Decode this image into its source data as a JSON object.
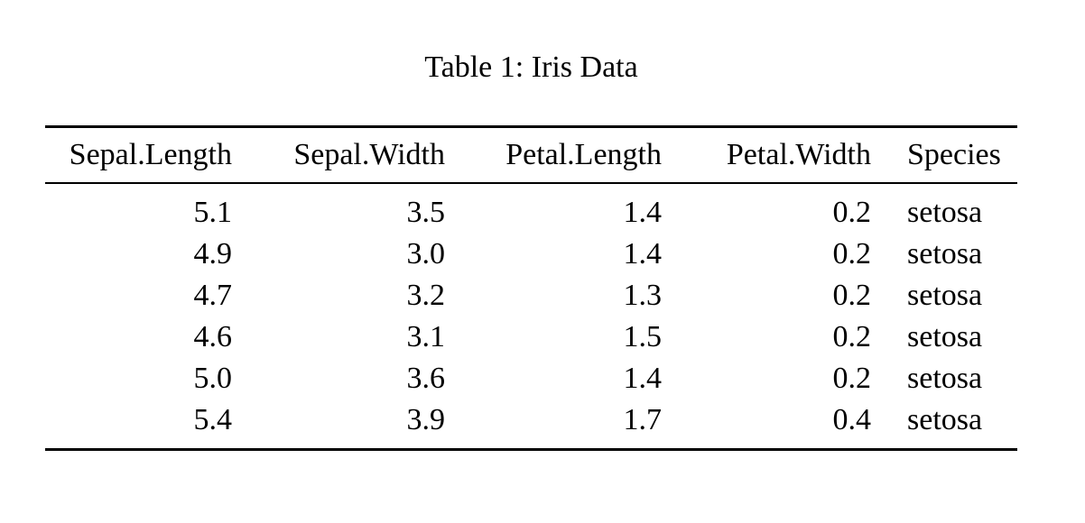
{
  "document": {
    "caption": "Table 1: Iris Data",
    "text_color": "#000000",
    "background_color": "#ffffff"
  },
  "table": {
    "columns": [
      {
        "label": "Sepal.Length",
        "align": "right"
      },
      {
        "label": "Sepal.Width",
        "align": "right"
      },
      {
        "label": "Petal.Length",
        "align": "right"
      },
      {
        "label": "Petal.Width",
        "align": "right"
      },
      {
        "label": "Species",
        "align": "left"
      }
    ],
    "rows": [
      [
        "5.1",
        "3.5",
        "1.4",
        "0.2",
        "setosa"
      ],
      [
        "4.9",
        "3.0",
        "1.4",
        "0.2",
        "setosa"
      ],
      [
        "4.7",
        "3.2",
        "1.3",
        "0.2",
        "setosa"
      ],
      [
        "4.6",
        "3.1",
        "1.5",
        "0.2",
        "setosa"
      ],
      [
        "5.0",
        "3.6",
        "1.4",
        "0.2",
        "setosa"
      ],
      [
        "5.4",
        "3.9",
        "1.7",
        "0.4",
        "setosa"
      ]
    ]
  },
  "chart_data": {
    "type": "table",
    "title": "Table 1: Iris Data",
    "categories": [
      "Sepal.Length",
      "Sepal.Width",
      "Petal.Length",
      "Petal.Width",
      "Species"
    ],
    "series": [
      {
        "name": "Sepal.Length",
        "values": [
          5.1,
          4.9,
          4.7,
          4.6,
          5.0,
          5.4
        ]
      },
      {
        "name": "Sepal.Width",
        "values": [
          3.5,
          3.0,
          3.2,
          3.1,
          3.6,
          3.9
        ]
      },
      {
        "name": "Petal.Length",
        "values": [
          1.4,
          1.4,
          1.3,
          1.5,
          1.4,
          1.7
        ]
      },
      {
        "name": "Petal.Width",
        "values": [
          0.2,
          0.2,
          0.2,
          0.2,
          0.2,
          0.4
        ]
      },
      {
        "name": "Species",
        "values": [
          "setosa",
          "setosa",
          "setosa",
          "setosa",
          "setosa",
          "setosa"
        ]
      }
    ]
  }
}
